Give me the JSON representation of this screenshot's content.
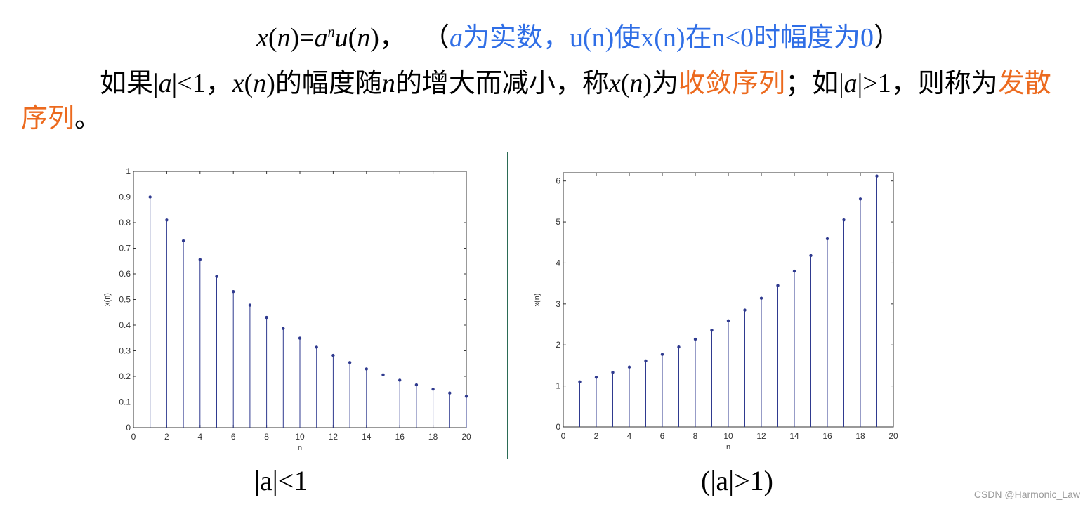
{
  "formula": {
    "x": "x",
    "lp1": "(",
    "n1": "n",
    "rp1": ")",
    "eq": "=",
    "a": "a",
    "sup_n": "n",
    "u": "u",
    "lp2": "(",
    "n2": "n",
    "rp2": ")",
    "comma": "，",
    "paren_open": "（",
    "note_a": "a",
    "note_rest": "为实数，u(n)使x(n)在n<0时幅度为0",
    "paren_close": "）"
  },
  "paragraph": {
    "p1": "如果|",
    "a1": "a",
    "p2": "|<1，",
    "x1": "x",
    "p3": "(",
    "n1": "n",
    "p4": ")的幅度随",
    "n2": "n",
    "p5": "的增大而减小，称",
    "x2": "x",
    "p6": "(",
    "n3": "n",
    "p7": ")为",
    "hl1": "收敛序列",
    "p8": "；如|",
    "a2": "a",
    "p9": "|>1，则称为",
    "hl2": "发散序列",
    "p10": "。"
  },
  "captions": {
    "left": "|a|<1",
    "right": "(|a|>1)"
  },
  "watermark": "CSDN @Harmonic_Law",
  "colors": {
    "blue": "#2f6ee6",
    "orange": "#ec6a1e",
    "stem": "#2f3a8f",
    "divider": "#2b6b55"
  },
  "chart_data": [
    {
      "type": "stem",
      "xlabel": "n",
      "ylabel": "x(n)",
      "xlim": [
        0,
        20
      ],
      "ylim": [
        0,
        1
      ],
      "xticks": [
        "0",
        "2",
        "4",
        "6",
        "8",
        "10",
        "12",
        "14",
        "16",
        "18",
        "20"
      ],
      "yticks": [
        "0",
        "0.1",
        "0.2",
        "0.3",
        "0.4",
        "0.5",
        "0.6",
        "0.7",
        "0.8",
        "0.9",
        "1"
      ],
      "grid": false,
      "x": [
        1,
        2,
        3,
        4,
        5,
        6,
        7,
        8,
        9,
        10,
        11,
        12,
        13,
        14,
        15,
        16,
        17,
        18,
        19,
        20
      ],
      "y": [
        0.9,
        0.81,
        0.729,
        0.656,
        0.59,
        0.531,
        0.478,
        0.43,
        0.387,
        0.349,
        0.314,
        0.282,
        0.254,
        0.229,
        0.206,
        0.185,
        0.167,
        0.15,
        0.135,
        0.122
      ]
    },
    {
      "type": "stem",
      "xlabel": "n",
      "ylabel": "x(n)",
      "xlim": [
        0,
        20
      ],
      "ylim": [
        0,
        6.2
      ],
      "xticks": [
        "0",
        "2",
        "4",
        "6",
        "8",
        "10",
        "12",
        "14",
        "16",
        "18",
        "20"
      ],
      "yticks": [
        "0",
        "1",
        "2",
        "3",
        "4",
        "5",
        "6"
      ],
      "yticks_values": [
        0,
        1,
        2,
        3,
        4,
        5,
        6
      ],
      "grid": false,
      "x": [
        1,
        2,
        3,
        4,
        5,
        6,
        7,
        8,
        9,
        10,
        11,
        12,
        13,
        14,
        15,
        16,
        17,
        18,
        19
      ],
      "y": [
        1.1,
        1.21,
        1.33,
        1.46,
        1.61,
        1.77,
        1.95,
        2.14,
        2.36,
        2.59,
        2.85,
        3.14,
        3.45,
        3.8,
        4.18,
        4.59,
        5.05,
        5.56,
        6.12
      ]
    }
  ]
}
